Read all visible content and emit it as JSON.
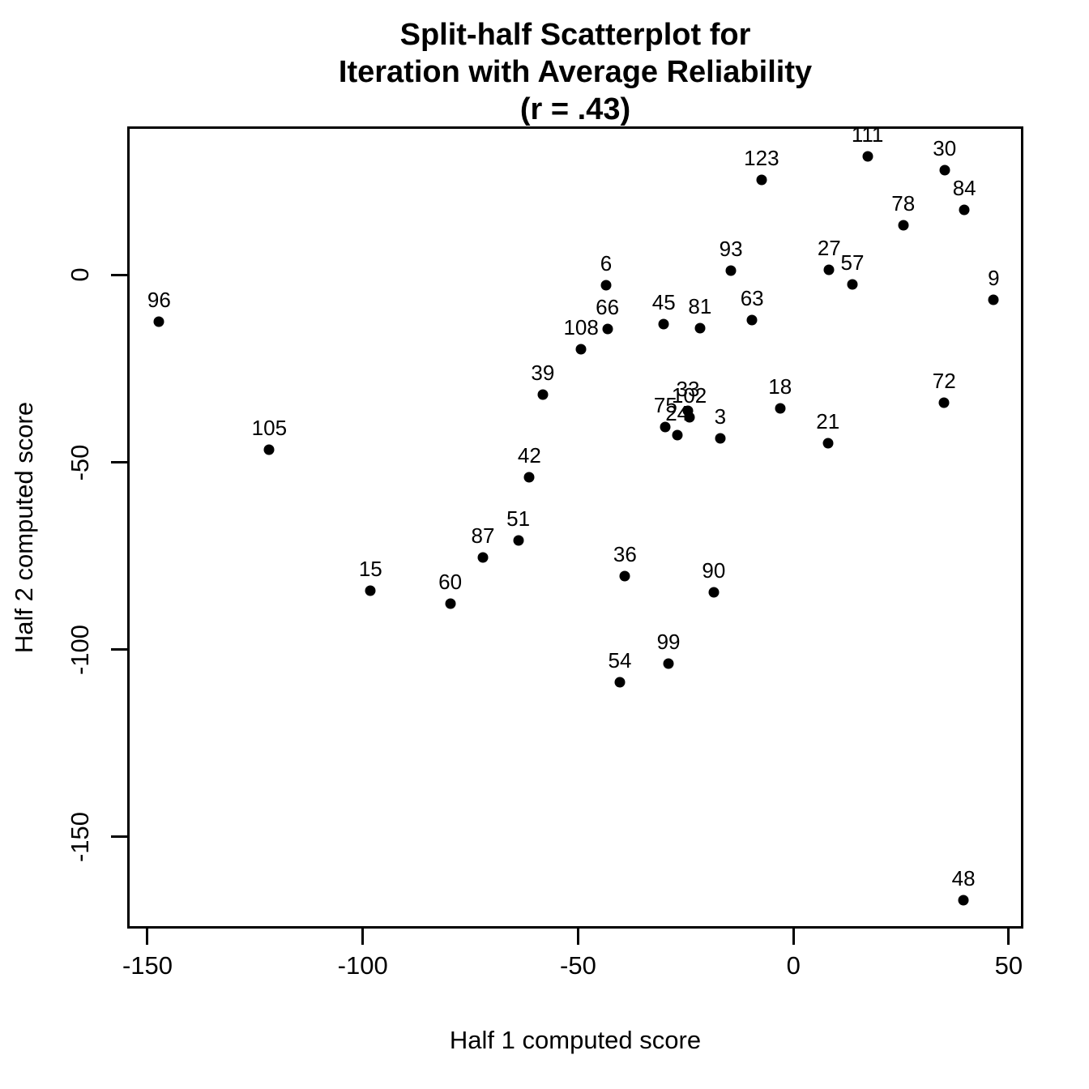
{
  "figure": {
    "background": "#ffffff",
    "foreground": "#000000"
  },
  "chart_data": {
    "type": "scatter",
    "title_lines": [
      "Split-half Scatterplot for",
      "Iteration with Average Reliability",
      "(r = .43)"
    ],
    "correlation_text": "r = .43",
    "xlabel": "Half 1 computed score",
    "ylabel": "Half 2 computed score",
    "xlim": [
      -154.7,
      53.4
    ],
    "ylim": [
      -174.5,
      39.7
    ],
    "x_ticks": [
      -150,
      -100,
      -50,
      0,
      50
    ],
    "x_tick_labels": [
      "-150",
      "-100",
      "-50",
      "0",
      "50"
    ],
    "y_ticks": [
      0,
      -50,
      -100,
      -150
    ],
    "y_tick_labels": [
      "0",
      "-50",
      "-100",
      "-150"
    ],
    "grid": false,
    "legend": null,
    "point_color": "#000000",
    "label_position": "above",
    "points": [
      {
        "label": "3",
        "x": -17.0,
        "y": -43.6
      },
      {
        "label": "6",
        "x": -43.5,
        "y": -2.6
      },
      {
        "label": "9",
        "x": 46.5,
        "y": -6.7
      },
      {
        "label": "15",
        "x": -98.2,
        "y": -84.3
      },
      {
        "label": "18",
        "x": -3.1,
        "y": -35.6
      },
      {
        "label": "21",
        "x": 8.0,
        "y": -44.9
      },
      {
        "label": "24",
        "x": -27.0,
        "y": -42.7
      },
      {
        "label": "27",
        "x": 8.3,
        "y": 1.4
      },
      {
        "label": "30",
        "x": 35.1,
        "y": 28.1
      },
      {
        "label": "33",
        "x": -24.5,
        "y": -36.2
      },
      {
        "label": "36",
        "x": -39.1,
        "y": -80.4
      },
      {
        "label": "39",
        "x": -58.2,
        "y": -31.9
      },
      {
        "label": "42",
        "x": -61.3,
        "y": -54.0
      },
      {
        "label": "45",
        "x": -30.1,
        "y": -13.1
      },
      {
        "label": "48",
        "x": 39.5,
        "y": -166.9
      },
      {
        "label": "51",
        "x": -63.9,
        "y": -70.9
      },
      {
        "label": "54",
        "x": -40.3,
        "y": -108.8
      },
      {
        "label": "57",
        "x": 13.7,
        "y": -2.4
      },
      {
        "label": "60",
        "x": -79.7,
        "y": -87.7
      },
      {
        "label": "63",
        "x": -9.6,
        "y": -12.1
      },
      {
        "label": "66",
        "x": -43.2,
        "y": -14.3
      },
      {
        "label": "72",
        "x": 35.0,
        "y": -34.0
      },
      {
        "label": "75",
        "x": -29.7,
        "y": -40.5
      },
      {
        "label": "78",
        "x": 25.5,
        "y": 13.4
      },
      {
        "label": "81",
        "x": -21.7,
        "y": -14.1
      },
      {
        "label": "84",
        "x": 39.7,
        "y": 17.5
      },
      {
        "label": "87",
        "x": -72.1,
        "y": -75.4
      },
      {
        "label": "90",
        "x": -18.5,
        "y": -84.7
      },
      {
        "label": "93",
        "x": -14.5,
        "y": 1.1
      },
      {
        "label": "96",
        "x": -147.3,
        "y": -12.5
      },
      {
        "label": "99",
        "x": -29.0,
        "y": -103.7
      },
      {
        "label": "102",
        "x": -24.2,
        "y": -38.0
      },
      {
        "label": "105",
        "x": -121.7,
        "y": -46.6
      },
      {
        "label": "108",
        "x": -49.3,
        "y": -19.7
      },
      {
        "label": "111",
        "x": 17.2,
        "y": 31.6
      },
      {
        "label": "123",
        "x": -7.4,
        "y": 25.4
      }
    ]
  }
}
